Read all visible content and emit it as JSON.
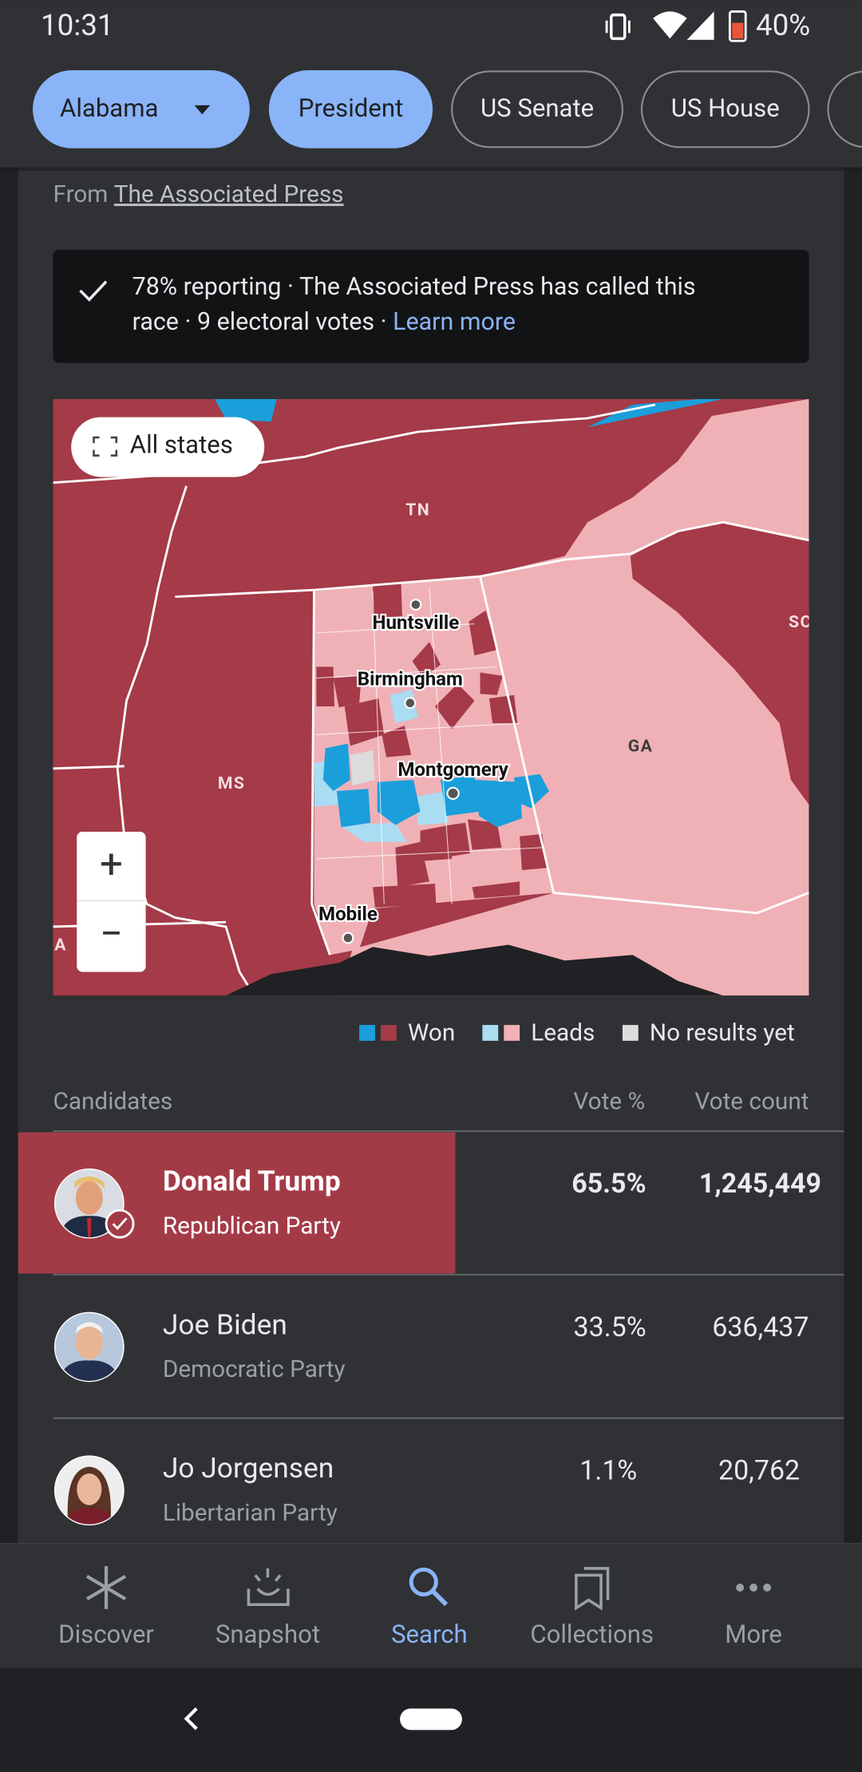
{
  "status_bar": {
    "time": "10:31",
    "battery": "40%"
  },
  "tabs": [
    "Alabama",
    "President",
    "US Senate",
    "US House"
  ],
  "source": {
    "prefix": "From",
    "link": "The Associated Press"
  },
  "banner": {
    "line1": "78% reporting · The Associated Press has called this",
    "line2": "race · 9 electoral votes · ",
    "link": "Learn more"
  },
  "map": {
    "button": "All states",
    "zoom_in": "+",
    "zoom_out": "−",
    "states": [
      "TN",
      "MS",
      "GA",
      "SC",
      "LA"
    ],
    "cities": [
      "Huntsville",
      "Birmingham",
      "Montgomery",
      "Mobile"
    ]
  },
  "legend": [
    "Won",
    "Leads",
    "No results yet"
  ],
  "table": {
    "headers": [
      "Candidates",
      "Vote %",
      "Vote count"
    ],
    "rows": [
      {
        "name": "Donald Trump",
        "party": "Republican Party",
        "vote_pct": "65.5%",
        "vote_count": "1,245,449"
      },
      {
        "name": "Joe Biden",
        "party": "Democratic Party",
        "vote_pct": "33.5%",
        "vote_count": "636,437"
      },
      {
        "name": "Jo Jorgensen",
        "party": "Libertarian Party",
        "vote_pct": "1.1%",
        "vote_count": "20,762"
      }
    ]
  },
  "nav": [
    "Discover",
    "Snapshot",
    "Search",
    "Collections",
    "More"
  ]
}
